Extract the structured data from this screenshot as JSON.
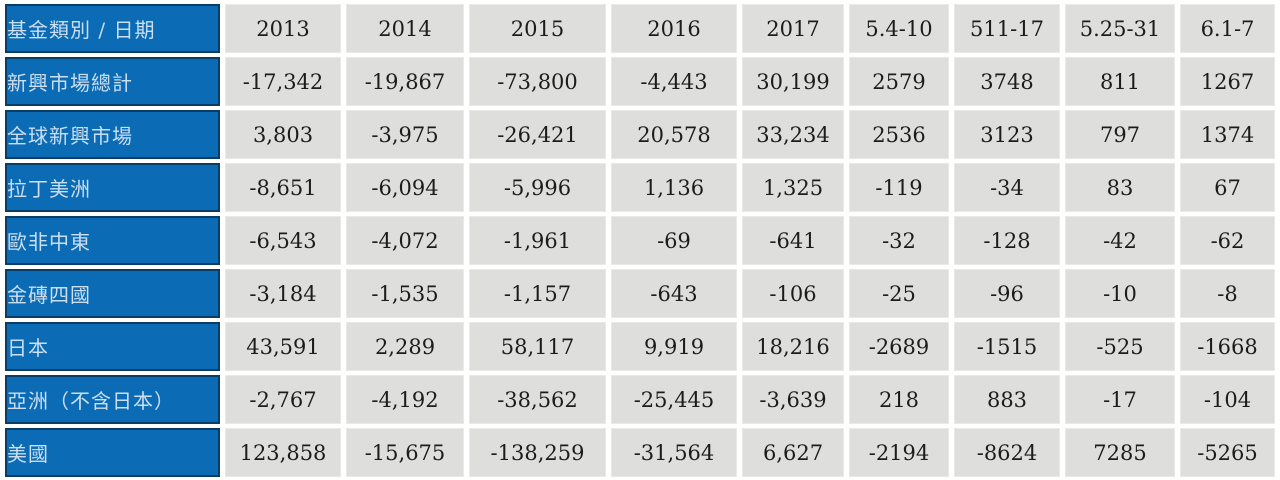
{
  "colors": {
    "label_cell_bg": "#0C6BB5",
    "label_cell_border": "#0A3D66",
    "label_text": "#CBDFF1",
    "value_cell_bg": "#DEDEDD",
    "value_text": "#1C1C1C",
    "page_bg": "#FFFFFF"
  },
  "chart_data": {
    "type": "table",
    "title": "",
    "corner_header": "基金類別 / 日期",
    "columns": [
      "2013",
      "2014",
      "2015",
      "2016",
      "2017",
      "5.4-10",
      "511-17",
      "5.25-31",
      "6.1-7"
    ],
    "rows": [
      {
        "label": "新興市場總計",
        "values": [
          "-17,342",
          "-19,867",
          "-73,800",
          "-4,443",
          "30,199",
          "2579",
          "3748",
          "811",
          "1267"
        ]
      },
      {
        "label": "全球新興市場",
        "values": [
          "3,803",
          "-3,975",
          "-26,421",
          "20,578",
          "33,234",
          "2536",
          "3123",
          "797",
          "1374"
        ]
      },
      {
        "label": "拉丁美洲",
        "values": [
          "-8,651",
          "-6,094",
          "-5,996",
          "1,136",
          "1,325",
          "-119",
          "-34",
          "83",
          "67"
        ]
      },
      {
        "label": "歐非中東",
        "values": [
          "-6,543",
          "-4,072",
          "-1,961",
          "-69",
          "-641",
          "-32",
          "-128",
          "-42",
          "-62"
        ]
      },
      {
        "label": "金磚四國",
        "values": [
          "-3,184",
          "-1,535",
          "-1,157",
          "-643",
          "-106",
          "-25",
          "-96",
          "-10",
          "-8"
        ]
      },
      {
        "label": "日本",
        "values": [
          "43,591",
          "2,289",
          "58,117",
          "9,919",
          "18,216",
          "-2689",
          "-1515",
          "-525",
          "-1668"
        ]
      },
      {
        "label": "亞洲（不含日本）",
        "values": [
          "-2,767",
          "-4,192",
          "-38,562",
          "-25,445",
          "-3,639",
          "218",
          "883",
          "-17",
          "-104"
        ]
      },
      {
        "label": "美國",
        "values": [
          "123,858",
          "-15,675",
          "-138,259",
          "-31,564",
          "6,627",
          "-2194",
          "-8624",
          "7285",
          "-5265"
        ]
      }
    ]
  }
}
